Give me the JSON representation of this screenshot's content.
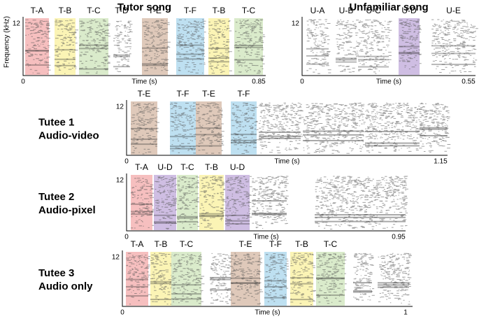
{
  "panels": [
    {
      "title": "Tutor song",
      "y_label": "Frequency (kHz)",
      "y_max": "12",
      "x_start": "0",
      "x_label": "Time (s)",
      "x_end": "0.85",
      "syllables": [
        {
          "label": "T-A",
          "color": "#f4b4b4"
        },
        {
          "label": "T-B",
          "color": "#faf2a8"
        },
        {
          "label": "T-C",
          "color": "#d3e8c2"
        },
        {
          "label": "T-D",
          "color": null
        },
        {
          "label": "T-E",
          "color": "#d9bfae"
        },
        {
          "label": "T-F",
          "color": "#b3dbee"
        },
        {
          "label": "T-B",
          "color": "#faf2a8"
        },
        {
          "label": "T-C",
          "color": "#d3e8c2"
        }
      ]
    },
    {
      "title": "Unfamiliar song",
      "y_max": "12",
      "x_start": "0",
      "x_label": "Time (s)",
      "x_end": "0.55",
      "syllables": [
        {
          "label": "U-A",
          "color": null
        },
        {
          "label": "U-B",
          "color": null
        },
        {
          "label": "U-C",
          "color": null
        },
        {
          "label": "U-D",
          "color": "#c7b3de"
        },
        {
          "label": "U-E",
          "color": null
        }
      ]
    },
    {
      "name": "Tutee 1",
      "condition": "Audio-video",
      "y_max": "12",
      "x_start": "0",
      "x_label": "Time (s)",
      "x_end": "1.15",
      "syllables": [
        {
          "label": "T-E",
          "color": "#d9bfae"
        },
        {
          "label": "T-F",
          "color": "#b3dbee"
        },
        {
          "label": "T-E",
          "color": "#d9bfae"
        },
        {
          "label": "T-F",
          "color": "#b3dbee"
        }
      ]
    },
    {
      "name": "Tutee 2",
      "condition": "Audio-pixel",
      "y_max": "12",
      "x_start": "0",
      "x_label": "Time (s)",
      "x_end": "0.95",
      "syllables": [
        {
          "label": "T-A",
          "color": "#f4b4b4"
        },
        {
          "label": "U-D",
          "color": "#c7b3de"
        },
        {
          "label": "T-C",
          "color": "#d3e8c2"
        },
        {
          "label": "T-B",
          "color": "#faf2a8"
        },
        {
          "label": "U-D",
          "color": "#c7b3de"
        }
      ]
    },
    {
      "name": "Tutee 3",
      "condition": "Audio only",
      "y_max": "12",
      "x_start": "0",
      "x_label": "Time (s)",
      "x_end": "1",
      "syllables": [
        {
          "label": "T-A",
          "color": "#f4b4b4"
        },
        {
          "label": "T-B",
          "color": "#faf2a8"
        },
        {
          "label": "T-C",
          "color": "#d3e8c2"
        },
        {
          "label": "T-E",
          "color": "#d9bfae"
        },
        {
          "label": "T-F",
          "color": "#b3dbee"
        },
        {
          "label": "T-B",
          "color": "#faf2a8"
        },
        {
          "label": "T-C",
          "color": "#d3e8c2"
        }
      ]
    }
  ]
}
